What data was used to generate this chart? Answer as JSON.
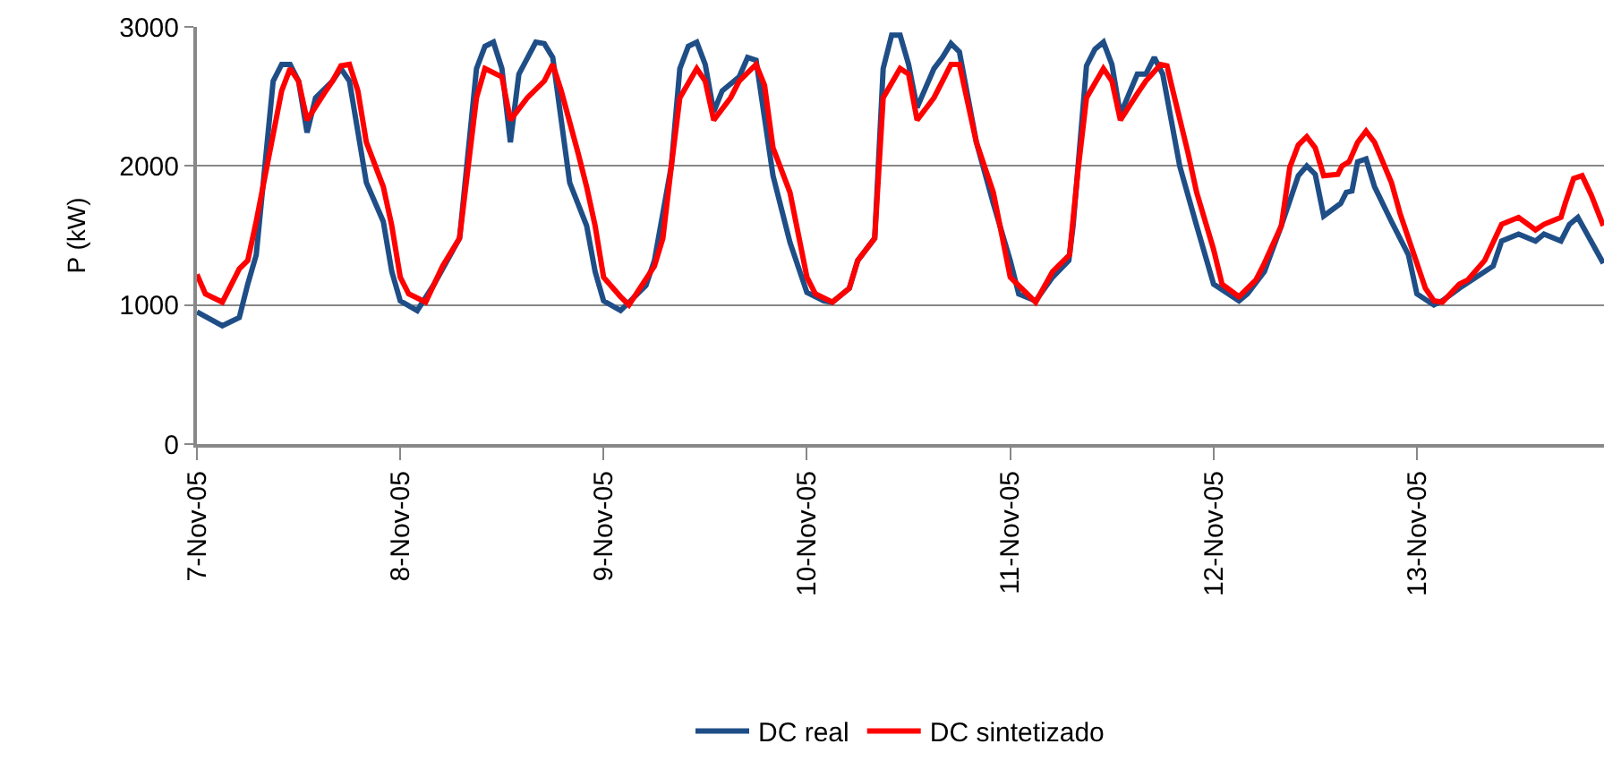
{
  "chart_data": {
    "type": "line",
    "ylabel": "P (kW)",
    "xlim": [
      "--11-07T00:00",
      "--11-13T22:05"
    ],
    "xticks": [
      {
        "value": "--11-07",
        "label": "7-Nov-05"
      },
      {
        "value": "--11-08",
        "label": "8-Nov-05"
      },
      {
        "value": "--11-09",
        "label": "9-Nov-05"
      },
      {
        "value": "--11-10",
        "label": "10-Nov-05"
      },
      {
        "value": "--11-11",
        "label": "11-Nov-05"
      },
      {
        "value": "--11-12",
        "label": "12-Nov-05"
      },
      {
        "value": "--11-13",
        "label": "13-Nov-05"
      }
    ],
    "ylim": [
      0,
      3000
    ],
    "yticks": [
      0,
      1000,
      2000,
      3000
    ],
    "grid": "y",
    "legend": "bottom",
    "marker": "none",
    "line_style": "solid",
    "series": [
      {
        "name": "DC real",
        "color": "#1f4e87",
        "x": [
          "--11-07T00:00",
          "--11-07T03:00",
          "--11-07T05:00",
          "--11-07T06:00",
          "--11-07T07:00",
          "--11-07T09:00",
          "--11-07T10:00",
          "--11-07T11:00",
          "--11-07T12:00",
          "--11-07T13:00",
          "--11-07T14:00",
          "--11-07T16:00",
          "--11-07T17:00",
          "--11-07T18:00",
          "--11-07T20:00",
          "--11-07T22:00",
          "--11-07T23:00",
          "--11-08T00:00",
          "--11-08T02:00",
          "--11-08T04:00",
          "--11-08T07:00",
          "--11-08T09:00",
          "--11-08T10:00",
          "--11-08T11:00",
          "--11-08T12:00",
          "--11-08T13:00",
          "--11-08T14:00",
          "--11-08T16:00",
          "--11-08T17:00",
          "--11-08T18:00",
          "--11-08T20:00",
          "--11-08T22:00",
          "--11-08T23:00",
          "--11-09T00:00",
          "--11-09T02:00",
          "--11-09T03:00",
          "--11-09T05:00",
          "--11-09T06:00",
          "--11-09T08:00",
          "--11-09T09:00",
          "--11-09T10:00",
          "--11-09T11:00",
          "--11-09T12:00",
          "--11-09T13:00",
          "--11-09T14:00",
          "--11-09T16:00",
          "--11-09T17:00",
          "--11-09T18:00",
          "--11-09T20:00",
          "--11-09T22:00",
          "--11-10T00:00",
          "--11-10T02:00",
          "--11-10T03:00",
          "--11-10T05:00",
          "--11-10T06:00",
          "--11-10T08:00",
          "--11-10T09:00",
          "--11-10T10:00",
          "--11-10T11:00",
          "--11-10T12:00",
          "--11-10T13:00",
          "--11-10T15:00",
          "--11-10T16:00",
          "--11-10T17:00",
          "--11-10T18:00",
          "--11-10T20:00",
          "--11-10T22:00",
          "--11-11T00:00",
          "--11-11T01:00",
          "--11-11T03:00",
          "--11-11T05:00",
          "--11-11T06:55",
          "--11-11T07:25",
          "--11-11T09:00",
          "--11-11T10:00",
          "--11-11T11:00",
          "--11-11T12:00",
          "--11-11T13:00",
          "--11-11T15:00",
          "--11-11T16:00",
          "--11-11T17:00",
          "--11-11T18:00",
          "--11-11T20:00",
          "--11-11T22:00",
          "--11-12T00:00",
          "--11-12T03:00",
          "--11-12T04:00",
          "--11-12T06:00",
          "--11-12T08:00",
          "--11-12T10:00",
          "--11-12T11:00",
          "--11-12T12:00",
          "--11-12T13:00",
          "--11-12T15:00",
          "--11-12T15:40",
          "--11-12T16:20",
          "--11-12T17:00",
          "--11-12T18:00",
          "--11-12T19:00",
          "--11-12T21:00",
          "--11-12T23:00",
          "--11-13T00:00",
          "--11-13T02:00",
          "--11-13T03:00",
          "--11-13T05:00",
          "--11-13T09:00",
          "--11-13T10:00",
          "--11-13T12:00",
          "--11-13T14:00",
          "--11-13T15:00",
          "--11-13T17:00",
          "--11-13T18:00",
          "--11-13T19:00",
          "--11-13T20:00",
          "--11-13T22:00"
        ],
        "values": [
          950,
          850,
          910,
          1150,
          1360,
          2610,
          2730,
          2730,
          2610,
          2240,
          2490,
          2610,
          2700,
          2610,
          1880,
          1600,
          1240,
          1030,
          960,
          1150,
          1480,
          2700,
          2860,
          2890,
          2700,
          2170,
          2660,
          2890,
          2880,
          2780,
          1880,
          1570,
          1240,
          1030,
          960,
          1020,
          1140,
          1320,
          2000,
          2700,
          2860,
          2890,
          2730,
          2390,
          2540,
          2640,
          2780,
          2760,
          1930,
          1450,
          1090,
          1030,
          1020,
          1120,
          1320,
          1480,
          2700,
          2940,
          2940,
          2730,
          2420,
          2700,
          2780,
          2880,
          2820,
          2170,
          1730,
          1320,
          1080,
          1030,
          1200,
          1320,
          1570,
          2720,
          2840,
          2890,
          2730,
          2370,
          2660,
          2660,
          2780,
          2660,
          2000,
          1570,
          1150,
          1030,
          1080,
          1240,
          1570,
          1930,
          2000,
          1940,
          1640,
          1730,
          1810,
          1820,
          2030,
          2050,
          1850,
          1600,
          1360,
          1080,
          1000,
          1030,
          1120,
          1280,
          1460,
          1510,
          1460,
          1510,
          1460,
          1580,
          1630,
          1520,
          1300
        ]
      },
      {
        "name": "DC sintetizado",
        "color": "#ff0000",
        "x": [
          "--11-07T00:00",
          "--11-07T01:00",
          "--11-07T03:00",
          "--11-07T05:00",
          "--11-07T06:00",
          "--11-07T07:00",
          "--11-07T10:00",
          "--11-07T11:00",
          "--11-07T12:00",
          "--11-07T13:00",
          "--11-07T15:00",
          "--11-07T16:00",
          "--11-07T17:00",
          "--11-07T18:00",
          "--11-07T19:00",
          "--11-07T20:00",
          "--11-07T22:00",
          "--11-07T23:00",
          "--11-08T00:00",
          "--11-08T01:00",
          "--11-08T03:00",
          "--11-08T05:00",
          "--11-08T07:00",
          "--11-08T09:00",
          "--11-08T10:00",
          "--11-08T12:00",
          "--11-08T13:00",
          "--11-08T15:00",
          "--11-08T17:00",
          "--11-08T18:00",
          "--11-08T19:00",
          "--11-08T21:00",
          "--11-08T22:00",
          "--11-08T23:00",
          "--11-09T00:00",
          "--11-09T02:00",
          "--11-09T03:00",
          "--11-09T06:00",
          "--11-09T07:00",
          "--11-09T08:00",
          "--11-09T09:00",
          "--11-09T11:00",
          "--11-09T12:00",
          "--11-09T13:00",
          "--11-09T15:00",
          "--11-09T16:00",
          "--11-09T18:00",
          "--11-09T19:00",
          "--11-09T20:00",
          "--11-09T22:00",
          "--11-10T00:00",
          "--11-10T01:00",
          "--11-10T03:00",
          "--11-10T05:00",
          "--11-10T06:00",
          "--11-10T08:00",
          "--11-10T09:00",
          "--11-10T11:00",
          "--11-10T12:00",
          "--11-10T13:00",
          "--11-10T15:00",
          "--11-10T16:00",
          "--11-10T17:00",
          "--11-10T18:00",
          "--11-10T20:00",
          "--11-10T22:00",
          "--11-11T00:00",
          "--11-11T02:00",
          "--11-11T03:00",
          "--11-11T05:00",
          "--11-11T07:00",
          "--11-11T08:00",
          "--11-11T09:00",
          "--11-11T11:00",
          "--11-11T12:00",
          "--11-11T13:00",
          "--11-11T15:00",
          "--11-11T16:00",
          "--11-11T17:45",
          "--11-11T18:30",
          "--11-11T19:12",
          "--11-11T21:00",
          "--11-11T22:00",
          "--11-12T00:00",
          "--11-12T01:00",
          "--11-12T03:00",
          "--11-12T05:00",
          "--11-12T06:00",
          "--11-12T08:00",
          "--11-12T09:00",
          "--11-12T10:00",
          "--11-12T11:00",
          "--11-12T12:00",
          "--11-12T13:00",
          "--11-12T14:40",
          "--11-12T15:10",
          "--11-12T16:00",
          "--11-12T17:00",
          "--11-12T18:00",
          "--11-12T19:00",
          "--11-12T21:00",
          "--11-12T22:00",
          "--11-12T23:00",
          "--11-13T01:00",
          "--11-13T02:00",
          "--11-13T03:00",
          "--11-13T05:00",
          "--11-13T06:00",
          "--11-13T08:00",
          "--11-13T10:00",
          "--11-13T12:00",
          "--11-13T14:00",
          "--11-13T15:00",
          "--11-13T17:00",
          "--11-13T17:30",
          "--11-13T18:30",
          "--11-13T19:30",
          "--11-13T20:35",
          "--11-13T22:00"
        ],
        "values": [
          1220,
          1080,
          1020,
          1260,
          1320,
          1600,
          2540,
          2700,
          2610,
          2330,
          2520,
          2610,
          2720,
          2730,
          2540,
          2170,
          1850,
          1570,
          1200,
          1080,
          1020,
          1280,
          1480,
          2490,
          2700,
          2640,
          2330,
          2490,
          2610,
          2730,
          2540,
          2090,
          1850,
          1570,
          1200,
          1060,
          1000,
          1280,
          1480,
          2000,
          2490,
          2700,
          2610,
          2330,
          2490,
          2610,
          2730,
          2580,
          2130,
          1810,
          1200,
          1080,
          1020,
          1120,
          1320,
          1480,
          2490,
          2700,
          2660,
          2330,
          2490,
          2610,
          2730,
          2730,
          2170,
          1810,
          1200,
          1080,
          1020,
          1240,
          1360,
          1970,
          2490,
          2700,
          2610,
          2330,
          2520,
          2610,
          2730,
          2720,
          2540,
          2090,
          1810,
          1400,
          1150,
          1060,
          1180,
          1300,
          1570,
          1990,
          2150,
          2210,
          2130,
          1930,
          1940,
          2000,
          2030,
          2170,
          2250,
          2170,
          1880,
          1660,
          1480,
          1120,
          1030,
          1020,
          1150,
          1180,
          1320,
          1580,
          1630,
          1540,
          1580,
          1630,
          1730,
          1910,
          1930,
          1790,
          1570
        ]
      }
    ]
  }
}
